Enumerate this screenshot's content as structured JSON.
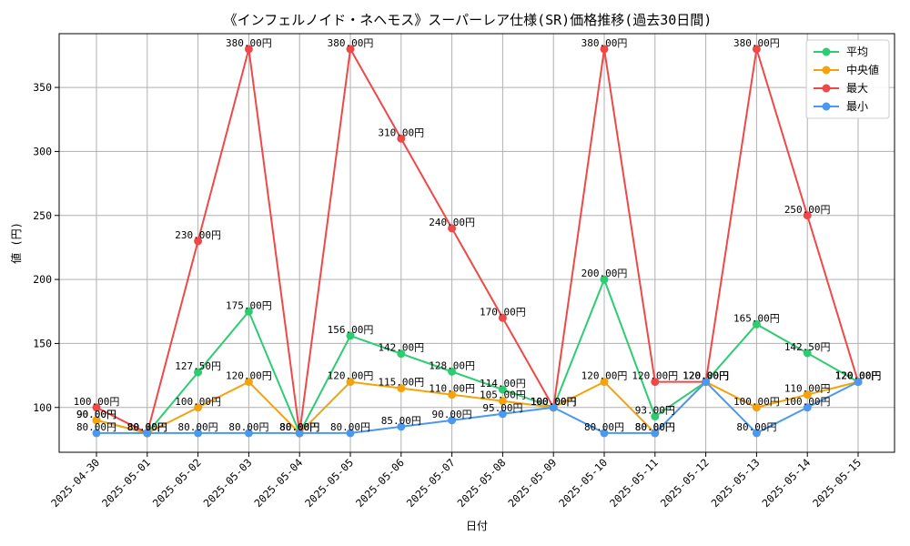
{
  "chart_data": {
    "type": "line",
    "title": "《インフェルノイド・ネヘモス》スーパーレア仕様(SR)価格推移(過去30日間)",
    "xlabel": "日付",
    "ylabel": "値 (円)",
    "categories": [
      "2025-04-30",
      "2025-05-01",
      "2025-05-02",
      "2025-05-03",
      "2025-05-04",
      "2025-05-05",
      "2025-05-06",
      "2025-05-07",
      "2025-05-08",
      "2025-05-09",
      "2025-05-10",
      "2025-05-11",
      "2025-05-12",
      "2025-05-13",
      "2025-05-14",
      "2025-05-15"
    ],
    "ylim": [
      65,
      392
    ],
    "yticks": [
      100,
      150,
      200,
      250,
      300,
      350
    ],
    "grid": true,
    "legend_position": "top-right",
    "label_suffix": "円",
    "series": [
      {
        "name": "平均",
        "color": "#2ecc71",
        "values": [
          90,
          80,
          127.5,
          175,
          80,
          156,
          142,
          128,
          114,
          100,
          200,
          93,
          120,
          165,
          142.5,
          120
        ]
      },
      {
        "name": "中央値",
        "color": "#f5a30a",
        "values": [
          90,
          80,
          100,
          120,
          80,
          120,
          115,
          110,
          105,
          100,
          120,
          80,
          120,
          100,
          110,
          120
        ]
      },
      {
        "name": "最大",
        "color": "#f04848",
        "values": [
          100,
          80,
          230,
          380,
          80,
          380,
          310,
          240,
          170,
          100,
          380,
          120,
          120,
          380,
          250,
          120
        ]
      },
      {
        "name": "最小",
        "color": "#4a98f0",
        "values": [
          80,
          80,
          80,
          80,
          80,
          80,
          85,
          90,
          95,
          100,
          80,
          80,
          120,
          80,
          100,
          120
        ]
      }
    ]
  }
}
